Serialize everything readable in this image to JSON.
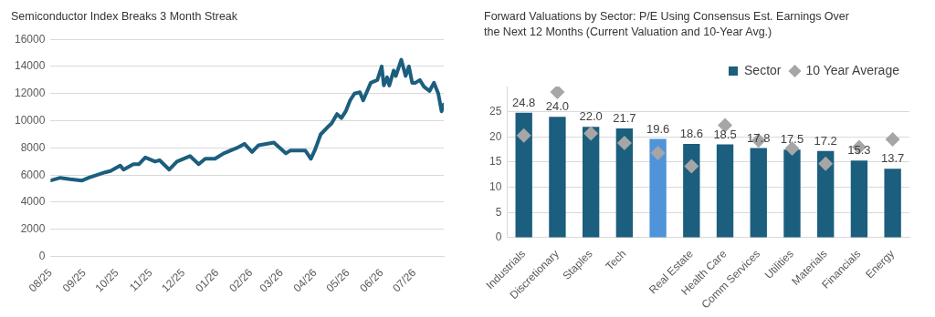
{
  "chart_data": [
    {
      "type": "line",
      "title": "Semiconductor Index Breaks 3 Month Streak",
      "x": [
        "2025-08-01",
        "2025-08-10",
        "2025-08-19",
        "2025-08-30",
        "2025-09-05",
        "2025-09-20",
        "2025-09-25",
        "2025-10-04",
        "2025-10-07",
        "2025-10-16",
        "2025-10-21",
        "2025-10-27",
        "2025-11-05",
        "2025-11-09",
        "2025-11-18",
        "2025-11-25",
        "2025-12-07",
        "2025-12-15",
        "2025-12-21",
        "2025-12-30",
        "2026-01-07",
        "2026-01-19",
        "2026-01-26",
        "2026-02-02",
        "2026-02-08",
        "2026-02-22",
        "2026-03-05",
        "2026-03-09",
        "2026-03-23",
        "2026-03-28",
        "2026-04-01",
        "2026-04-06",
        "2026-04-12",
        "2026-04-16",
        "2026-04-21",
        "2026-04-25",
        "2026-04-29",
        "2026-05-03",
        "2026-05-07",
        "2026-05-12",
        "2026-05-15",
        "2026-05-22",
        "2026-05-28",
        "2026-06-01",
        "2026-06-03",
        "2026-06-06",
        "2026-06-08",
        "2026-06-12",
        "2026-06-14",
        "2026-06-19",
        "2026-06-23",
        "2026-06-26",
        "2026-06-29",
        "2026-07-02",
        "2026-07-06",
        "2026-07-10",
        "2026-07-15",
        "2026-07-19",
        "2026-07-23",
        "2026-07-26",
        "2026-07-28"
      ],
      "series": [
        {
          "color": "#1b5e7e",
          "values": [
            5600,
            5800,
            5700,
            5600,
            5800,
            6200,
            6300,
            6700,
            6400,
            6800,
            6800,
            7300,
            7000,
            7100,
            6400,
            7000,
            7400,
            6800,
            7200,
            7200,
            7600,
            8000,
            8300,
            7700,
            8200,
            8400,
            7600,
            7800,
            7800,
            7200,
            7900,
            9000,
            9500,
            9800,
            10500,
            10200,
            10700,
            11500,
            12000,
            12100,
            11500,
            12800,
            13000,
            14000,
            12600,
            13200,
            12600,
            13700,
            13300,
            14500,
            13300,
            14000,
            12800,
            12800,
            13000,
            12500,
            12200,
            12800,
            12000,
            10700,
            11200
          ]
        }
      ],
      "xlim": [
        "2025-08-01",
        "2026-07-28"
      ],
      "xticks": [
        {
          "value": "2025-08-01",
          "label": "08/25"
        },
        {
          "value": "2025-09-01",
          "label": "09/25"
        },
        {
          "value": "2025-10-01",
          "label": "10/25"
        },
        {
          "value": "2025-11-01",
          "label": "11/25"
        },
        {
          "value": "2025-12-01",
          "label": "12/25"
        },
        {
          "value": "2026-01-01",
          "label": "01/26"
        },
        {
          "value": "2026-02-01",
          "label": "02/26"
        },
        {
          "value": "2026-03-01",
          "label": "03/26"
        },
        {
          "value": "2026-04-01",
          "label": "04/26"
        },
        {
          "value": "2026-05-01",
          "label": "05/26"
        },
        {
          "value": "2026-06-01",
          "label": "06/26"
        },
        {
          "value": "2026-07-01",
          "label": "07/26"
        }
      ],
      "ylim": [
        0,
        16000
      ],
      "yticks": [
        0,
        2000,
        4000,
        6000,
        8000,
        10000,
        12000,
        14000,
        16000
      ],
      "grid": "y",
      "legend": false,
      "marker": "none",
      "line_style": "solid"
    },
    {
      "type": "bar",
      "title": "Forward Valuations by Sector: P/E Using Consensus Est. Earnings Over the Next 12 Months (Current Valuation and 10-Year Avg.)",
      "categories": [
        "Industrials",
        "Discretionary",
        "Staples",
        "Tech",
        null,
        "Real Estate",
        "Health Care",
        "Comm Services",
        "Utilities",
        "Materials",
        "Financials",
        "Energy"
      ],
      "series": [
        {
          "name": "Sector",
          "type": "bar",
          "color": "#1b5e7e",
          "colors": [
            "#1b5e7e",
            "#1b5e7e",
            "#1b5e7e",
            "#1b5e7e",
            "#4f94d8",
            "#1b5e7e",
            "#1b5e7e",
            "#1b5e7e",
            "#1b5e7e",
            "#1b5e7e",
            "#1b5e7e",
            "#1b5e7e"
          ],
          "values": [
            24.8,
            24.0,
            22.0,
            21.7,
            19.6,
            18.6,
            18.5,
            17.8,
            17.5,
            17.2,
            15.3,
            13.7
          ],
          "value_labels": [
            "24.8",
            "24.0",
            "22.0",
            "21.7",
            "19.6",
            "18.6",
            "18.5",
            "17.8",
            "17.5",
            "17.2",
            "15.3",
            "13.7"
          ]
        },
        {
          "name": "10 Year Average",
          "type": "scatter",
          "marker": "diamond",
          "color": "#a6a6a6",
          "values": [
            20.3,
            28.9,
            20.7,
            18.8,
            16.8,
            14.2,
            22.3,
            19.3,
            17.7,
            14.7,
            18.0,
            19.5
          ]
        }
      ],
      "ylim": [
        0,
        30
      ],
      "yticks": [
        0,
        5,
        10,
        15,
        20,
        25
      ],
      "grid": "y",
      "legend": "top right"
    }
  ]
}
